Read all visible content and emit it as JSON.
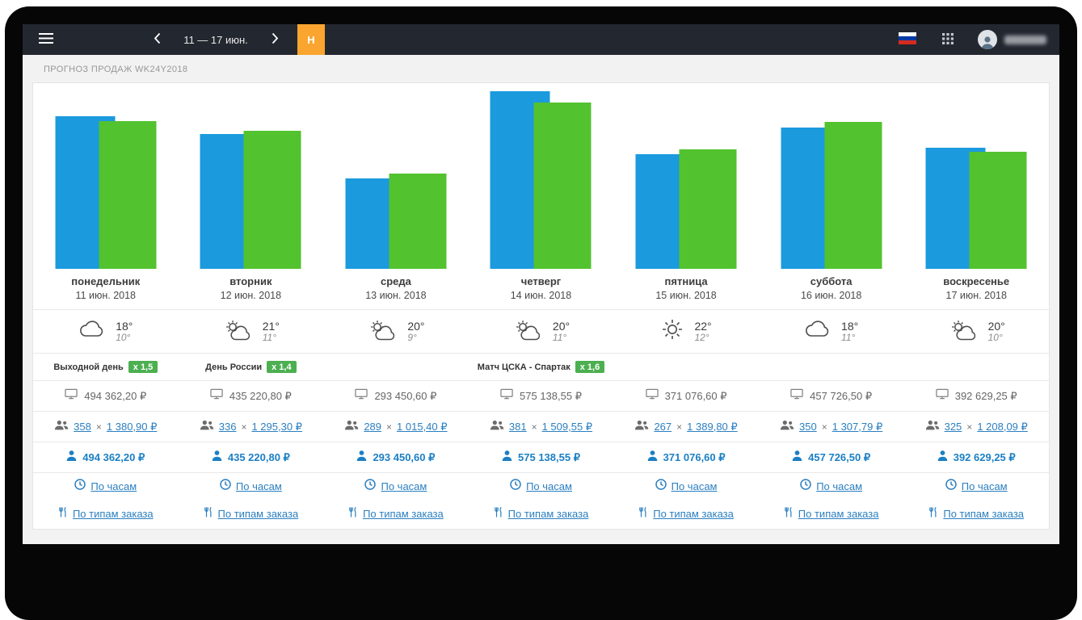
{
  "header": {
    "date_range": "11 — 17 июн.",
    "today_button": "Н"
  },
  "page": {
    "title": "ПРОГНОЗ ПРОДАЖ WK24Y2018"
  },
  "labels": {
    "multiply": "×"
  },
  "links": {
    "by_hours": "По часам",
    "by_order_type": "По типам заказа"
  },
  "chart_data": {
    "type": "bar",
    "title": "ПРОГНОЗ ПРОДАЖ WK24Y2018",
    "categories": [
      "понедельник",
      "вторник",
      "среда",
      "четверг",
      "пятница",
      "суббота",
      "воскресенье"
    ],
    "x_dates": [
      "11 июн. 2018",
      "12 июн. 2018",
      "13 июн. 2018",
      "14 июн. 2018",
      "15 июн. 2018",
      "16 июн. 2018",
      "17 июн. 2018"
    ],
    "series": [
      {
        "name": "forecast-blue",
        "color": "#1b9ade",
        "values": [
          494362.2,
          435220.8,
          293450.6,
          575138.55,
          371076.6,
          457726.5,
          392629.25
        ]
      },
      {
        "name": "forecast-green",
        "color": "#53c22f",
        "values": [
          478400,
          447300,
          307200,
          536500,
          386200,
          475300,
          377900
        ]
      }
    ],
    "xlabel": "",
    "ylabel": "",
    "ylim": [
      0,
      600000
    ],
    "grid": false,
    "legend": "none"
  },
  "columns": [
    {
      "day": "понедельник",
      "date": "11 июн. 2018",
      "weather": {
        "icon": "cloud",
        "high": "18°",
        "low": "10°"
      },
      "event": {
        "label": "Выходной день",
        "multiplier": "x 1,5"
      },
      "revenue": "494 362,20 ₽",
      "orders": {
        "count": "358",
        "avg": "1 380,90 ₽"
      },
      "per_person": "494 362,20 ₽"
    },
    {
      "day": "вторник",
      "date": "12 июн. 2018",
      "weather": {
        "icon": "sun-cloud",
        "high": "21°",
        "low": "11°"
      },
      "event": {
        "label": "День России",
        "multiplier": "x 1,4"
      },
      "revenue": "435 220,80 ₽",
      "orders": {
        "count": "336",
        "avg": "1 295,30 ₽"
      },
      "per_person": "435 220,80 ₽"
    },
    {
      "day": "среда",
      "date": "13 июн. 2018",
      "weather": {
        "icon": "sun-cloud",
        "high": "20°",
        "low": "9°"
      },
      "event": null,
      "revenue": "293 450,60 ₽",
      "orders": {
        "count": "289",
        "avg": "1 015,40 ₽"
      },
      "per_person": "293 450,60 ₽"
    },
    {
      "day": "четверг",
      "date": "14 июн. 2018",
      "weather": {
        "icon": "sun-cloud",
        "high": "20°",
        "low": "11°"
      },
      "event": {
        "label": "Матч ЦСКА - Спартак",
        "multiplier": "x 1,6"
      },
      "revenue": "575 138,55 ₽",
      "orders": {
        "count": "381",
        "avg": "1 509,55 ₽"
      },
      "per_person": "575 138,55 ₽"
    },
    {
      "day": "пятница",
      "date": "15 июн. 2018",
      "weather": {
        "icon": "sun",
        "high": "22°",
        "low": "12°"
      },
      "event": null,
      "revenue": "371 076,60 ₽",
      "orders": {
        "count": "267",
        "avg": "1 389,80 ₽"
      },
      "per_person": "371 076,60 ₽"
    },
    {
      "day": "суббота",
      "date": "16 июн. 2018",
      "weather": {
        "icon": "cloud",
        "high": "18°",
        "low": "11°"
      },
      "event": null,
      "revenue": "457 726,50 ₽",
      "orders": {
        "count": "350",
        "avg": "1 307,79 ₽"
      },
      "per_person": "457 726,50 ₽"
    },
    {
      "day": "воскресенье",
      "date": "17 июн. 2018",
      "weather": {
        "icon": "sun-cloud",
        "high": "20°",
        "low": "10°"
      },
      "event": null,
      "revenue": "392 629,25 ₽",
      "orders": {
        "count": "325",
        "avg": "1 208,09 ₽"
      },
      "per_person": "392 629,25 ₽"
    }
  ]
}
